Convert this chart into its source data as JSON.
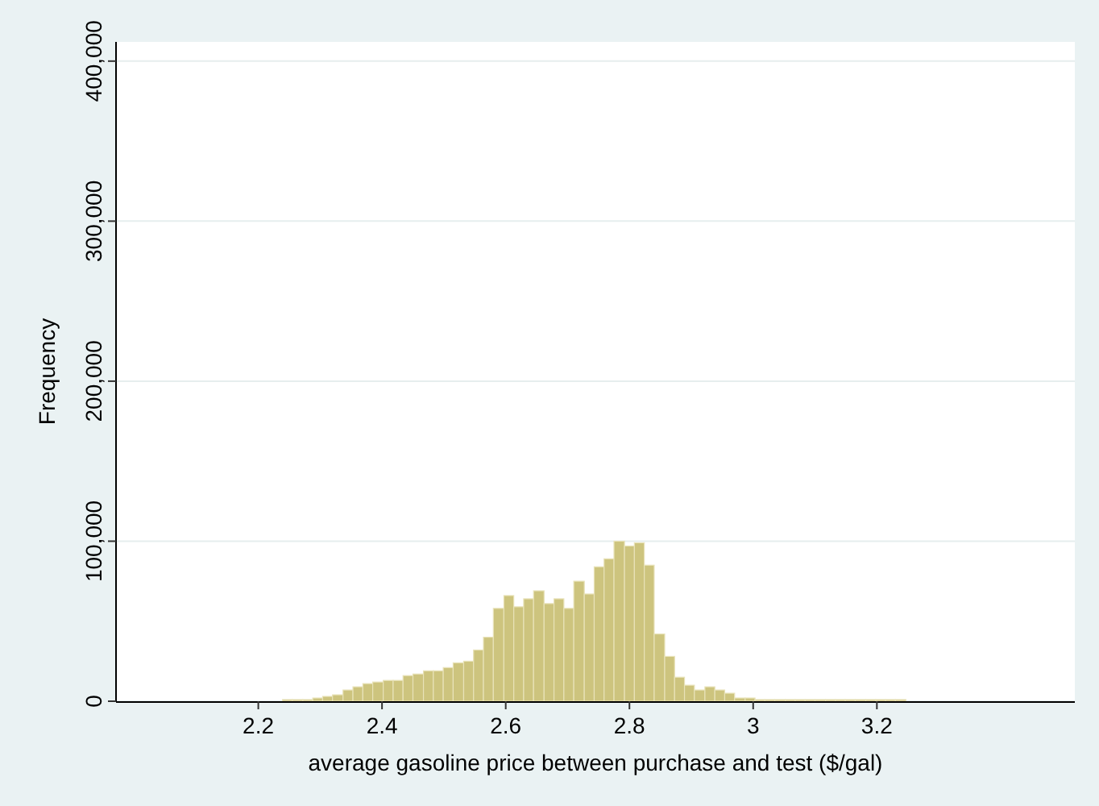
{
  "chart_data": {
    "type": "histogram",
    "xlabel": "average gasoline price between purchase and test ($/gal)",
    "ylabel": "Frequency",
    "color": "#cdc47e",
    "bins": [
      2.239,
      2.255,
      2.272,
      2.288,
      2.304,
      2.32,
      2.337,
      2.353,
      2.369,
      2.385,
      2.402,
      2.418,
      2.434,
      2.45,
      2.467,
      2.483,
      2.499,
      2.515,
      2.532,
      2.548,
      2.564,
      2.58,
      2.597,
      2.613,
      2.629,
      2.645,
      2.662,
      2.678,
      2.694,
      2.71,
      2.727,
      2.743,
      2.759,
      2.775,
      2.792,
      2.808,
      2.824,
      2.84,
      2.857,
      2.873,
      2.889,
      2.905,
      2.922,
      2.938,
      2.954,
      2.97,
      2.987,
      3.003,
      3.019,
      3.035,
      3.052,
      3.068,
      3.084,
      3.1,
      3.117,
      3.133,
      3.149,
      3.165,
      3.182,
      3.198,
      3.214,
      3.23,
      3.247
    ],
    "values": [
      1000,
      1000,
      1000,
      2000,
      3000,
      4000,
      7000,
      9000,
      11000,
      12000,
      13000,
      13000,
      16000,
      17000,
      19000,
      19000,
      21000,
      24000,
      25000,
      32000,
      40000,
      58000,
      66000,
      59000,
      64000,
      69000,
      61000,
      64000,
      58000,
      75000,
      67000,
      84000,
      89000,
      100000,
      97000,
      99000,
      85000,
      42000,
      28000,
      15000,
      10000,
      7000,
      9000,
      7000,
      5000,
      2000,
      2000,
      1000,
      1000,
      1000,
      1000,
      1000,
      1000,
      1000,
      1000,
      1000,
      1000,
      1000,
      1000,
      1000,
      1000,
      1000
    ],
    "xlim": [
      1.97,
      3.52
    ],
    "ylim": [
      0,
      412000
    ],
    "xticks": [
      2.2,
      2.4,
      2.6,
      2.8,
      3,
      3.2
    ],
    "yticks": [
      0,
      {
        "value": 100000,
        "label": "100,000"
      },
      {
        "value": 200000,
        "label": "200,000"
      },
      {
        "value": 300000,
        "label": "300,000"
      },
      {
        "value": 400000,
        "label": "400,000"
      }
    ],
    "grid": "y"
  }
}
